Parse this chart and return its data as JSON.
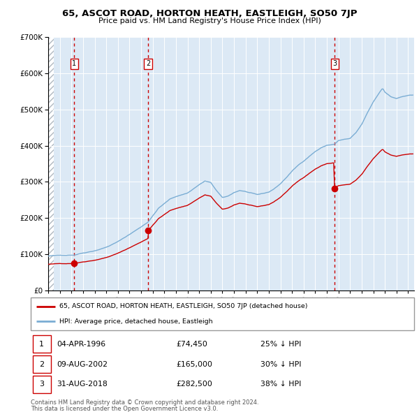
{
  "title": "65, ASCOT ROAD, HORTON HEATH, EASTLEIGH, SO50 7JP",
  "subtitle": "Price paid vs. HM Land Registry's House Price Index (HPI)",
  "transactions": [
    {
      "num": 1,
      "date": "04-APR-1996",
      "date_val": 1996.25,
      "price": 74450,
      "pct": "25% ↓ HPI"
    },
    {
      "num": 2,
      "date": "09-AUG-2002",
      "date_val": 2002.6,
      "price": 165000,
      "pct": "30% ↓ HPI"
    },
    {
      "num": 3,
      "date": "31-AUG-2018",
      "date_val": 2018.66,
      "price": 282500,
      "pct": "38% ↓ HPI"
    }
  ],
  "legend_label_red": "65, ASCOT ROAD, HORTON HEATH, EASTLEIGH, SO50 7JP (detached house)",
  "legend_label_blue": "HPI: Average price, detached house, Eastleigh",
  "footnote1": "Contains HM Land Registry data © Crown copyright and database right 2024.",
  "footnote2": "This data is licensed under the Open Government Licence v3.0.",
  "ylim": [
    0,
    700000
  ],
  "xlim_start": 1994.0,
  "xlim_end": 2025.5,
  "background_color": "#ffffff",
  "plot_bg_color": "#dce9f5",
  "hatch_color": "#b0b8c0",
  "grid_color": "#ffffff",
  "red_line_color": "#cc0000",
  "blue_line_color": "#7aadd4",
  "dashed_line_color": "#cc0000"
}
